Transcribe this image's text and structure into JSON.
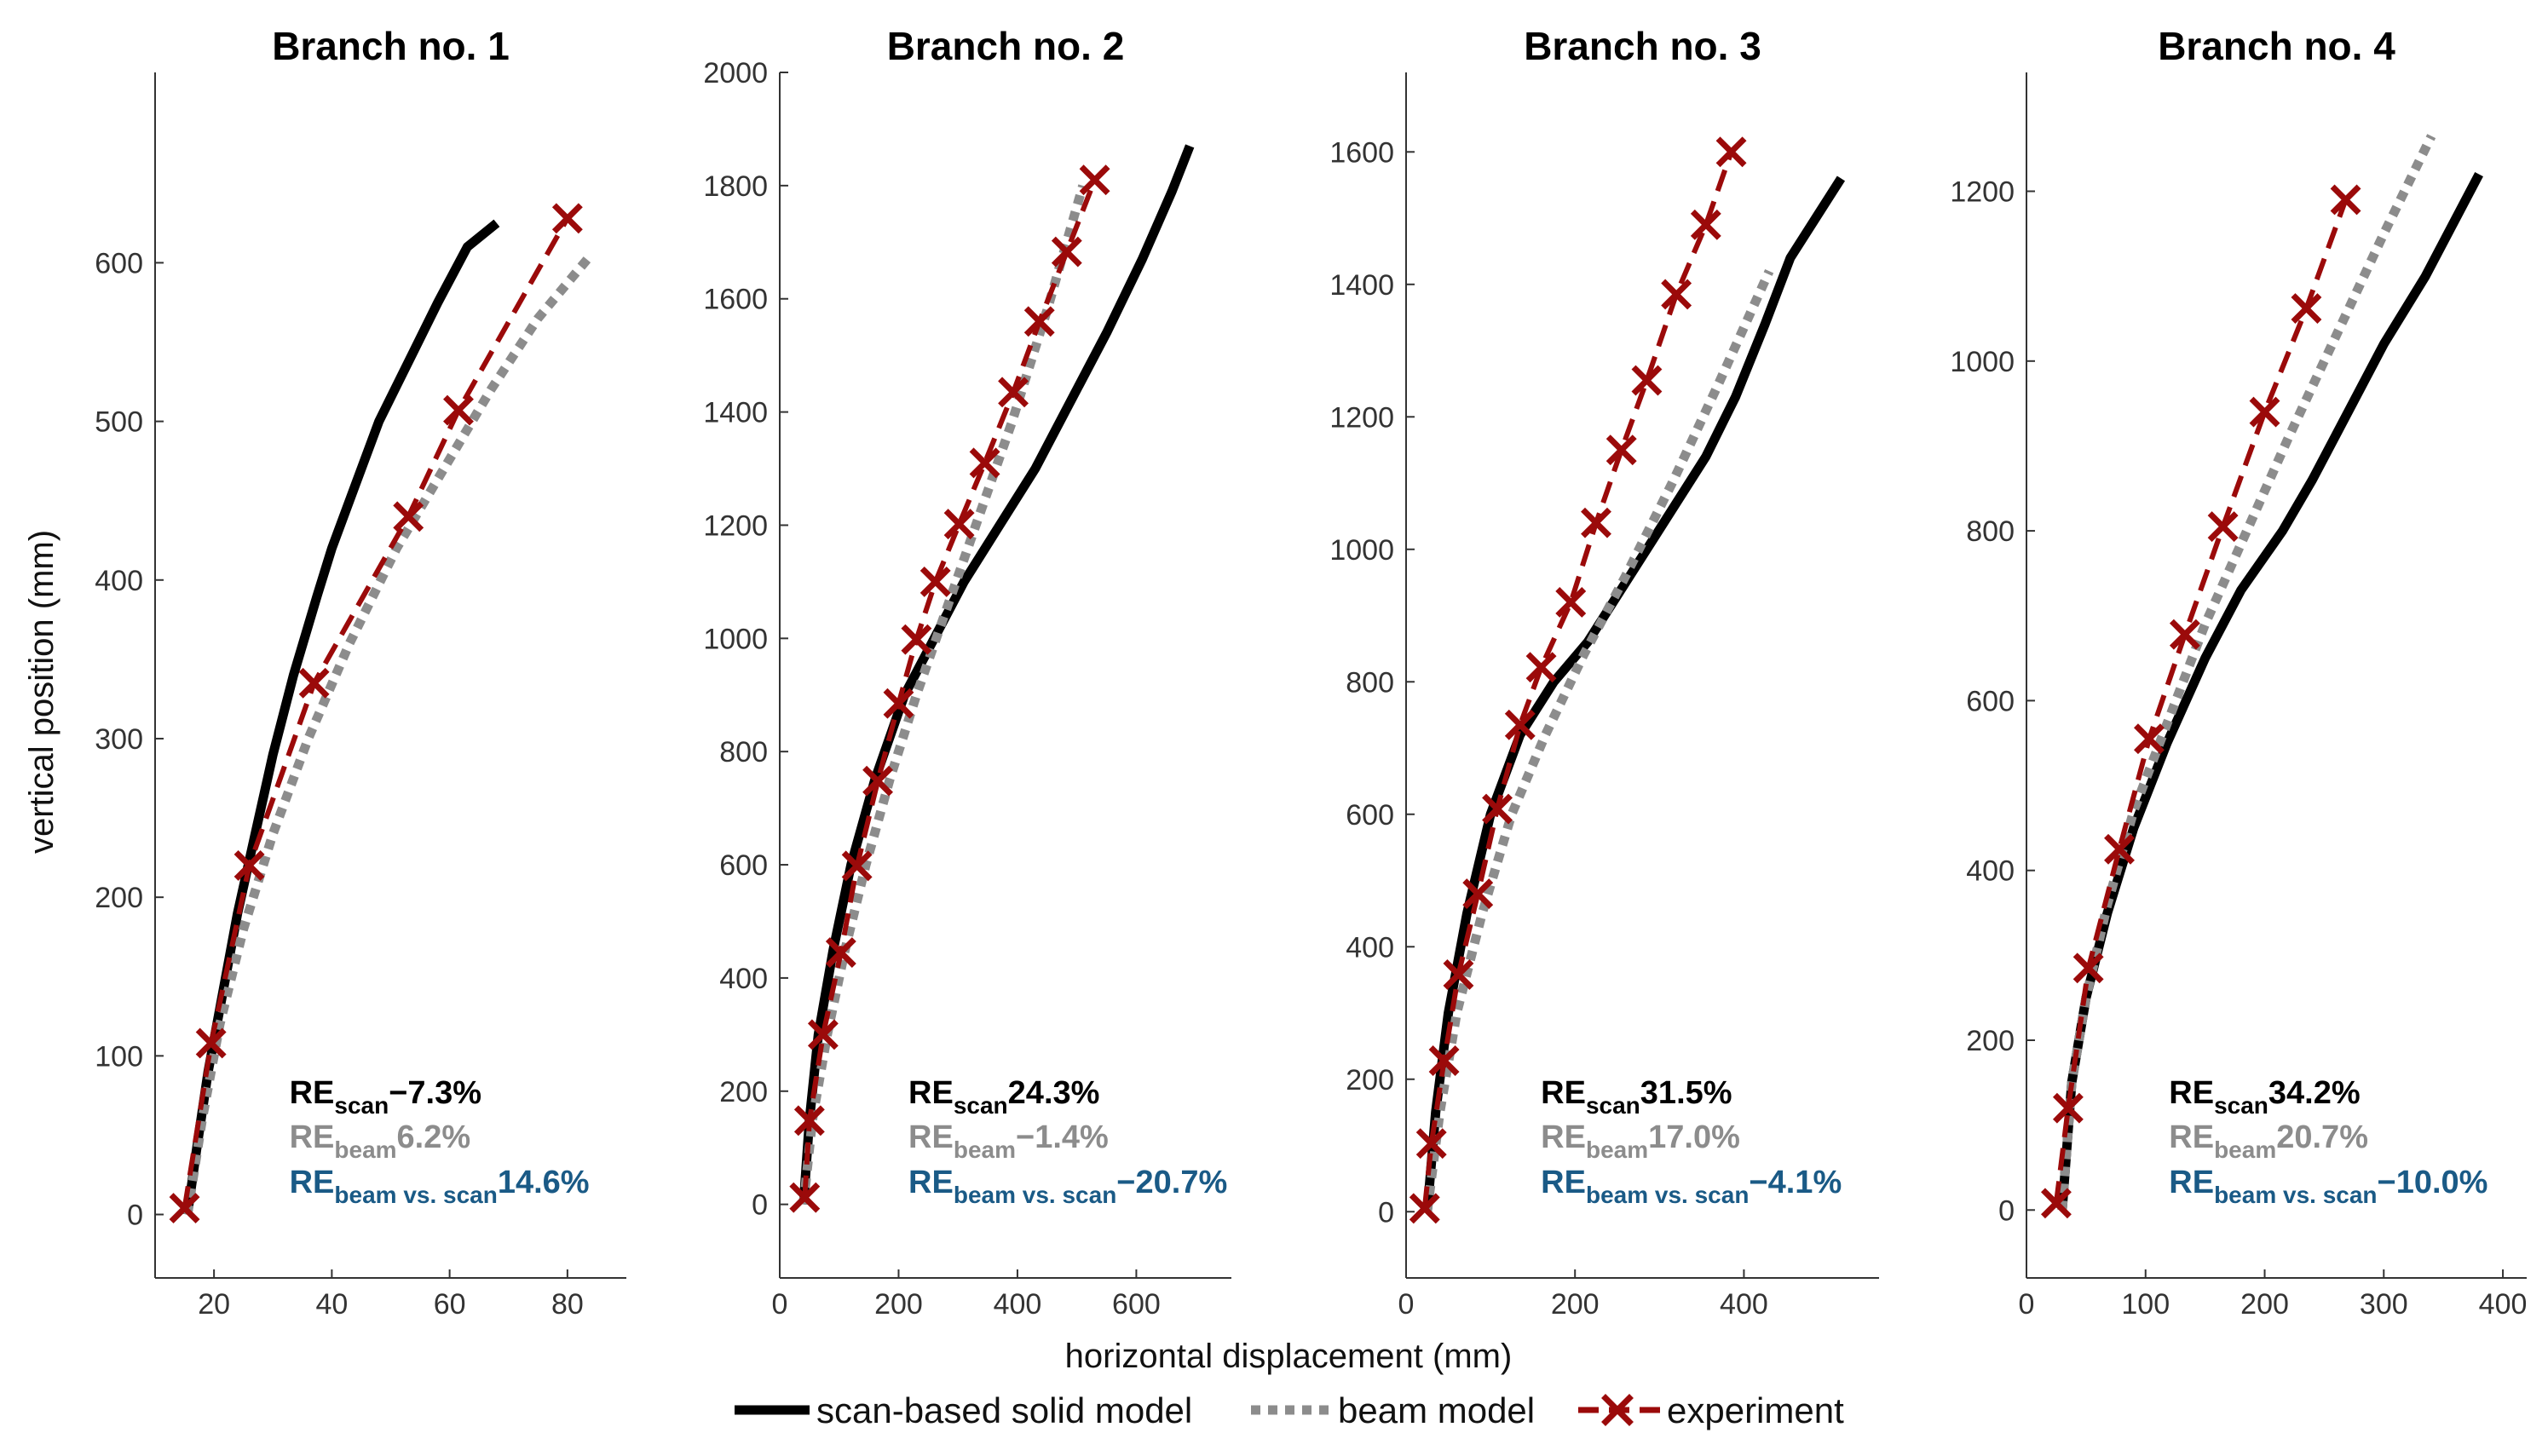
{
  "chart_data": [
    {
      "type": "line",
      "title": "Branch no. 1",
      "xlim": [
        10,
        90
      ],
      "ylim": [
        -40,
        720
      ],
      "xticks": [
        20,
        40,
        60,
        80
      ],
      "yticks": [
        0,
        100,
        200,
        300,
        400,
        500,
        600
      ],
      "series": [
        {
          "name": "scan-based solid model",
          "x": [
            15.5,
            17,
            19,
            21.5,
            24,
            27,
            30,
            33.5,
            37.5,
            40,
            44,
            48,
            52,
            54,
            58,
            63,
            68
          ],
          "y": [
            0,
            40,
            90,
            140,
            190,
            240,
            290,
            340,
            390,
            420,
            460,
            500,
            530,
            545,
            575,
            610,
            625
          ]
        },
        {
          "name": "beam model",
          "x": [
            15.5,
            18,
            21,
            25,
            30,
            36,
            43,
            51,
            59,
            67,
            75,
            84
          ],
          "y": [
            0,
            60,
            120,
            180,
            240,
            300,
            360,
            420,
            470,
            520,
            565,
            605
          ]
        },
        {
          "name": "experiment",
          "x": [
            15,
            19.5,
            26,
            37,
            53,
            61.5,
            80
          ],
          "y": [
            4,
            108,
            220,
            335,
            440,
            507,
            628
          ]
        }
      ],
      "annotations": {
        "re_scan": "−7.3%",
        "re_beam": "6.2%",
        "re_beam_vs_scan": "14.6%"
      }
    },
    {
      "type": "line",
      "title": "Branch no. 2",
      "xlim": [
        0,
        760
      ],
      "ylim": [
        -130,
        2000
      ],
      "xticks": [
        0,
        200,
        400,
        600
      ],
      "yticks": [
        0,
        200,
        400,
        600,
        800,
        1000,
        1200,
        1400,
        1600,
        1800,
        2000
      ],
      "series": [
        {
          "name": "scan-based solid model",
          "x": [
            40,
            50,
            65,
            90,
            120,
            160,
            210,
            260,
            310,
            370,
            430,
            490,
            550,
            610,
            660,
            690
          ],
          "y": [
            0,
            150,
            300,
            450,
            600,
            750,
            900,
            1000,
            1100,
            1200,
            1300,
            1420,
            1540,
            1670,
            1790,
            1870
          ]
        },
        {
          "name": "beam model",
          "x": [
            40,
            55,
            80,
            110,
            145,
            185,
            230,
            280,
            330,
            390,
            450,
            510
          ],
          "y": [
            0,
            150,
            300,
            450,
            600,
            750,
            900,
            1050,
            1200,
            1380,
            1580,
            1800
          ]
        },
        {
          "name": "experiment",
          "x": [
            42,
            50,
            73,
            103,
            130,
            165,
            200,
            230,
            262,
            302,
            345,
            393,
            437,
            483,
            530
          ],
          "y": [
            12,
            148,
            300,
            445,
            598,
            748,
            885,
            998,
            1100,
            1202,
            1310,
            1435,
            1560,
            1683,
            1810
          ]
        }
      ],
      "annotations": {
        "re_scan": "24.3%",
        "re_beam": "−1.4%",
        "re_beam_vs_scan": "−20.7%"
      }
    },
    {
      "type": "line",
      "title": "Branch no. 3",
      "xlim": [
        0,
        560
      ],
      "ylim": [
        -100,
        1720
      ],
      "xticks": [
        0,
        200,
        400
      ],
      "yticks": [
        0,
        200,
        400,
        600,
        800,
        1000,
        1200,
        1400,
        1600
      ],
      "series": [
        {
          "name": "scan-based solid model",
          "x": [
            25,
            35,
            50,
            72,
            100,
            135,
            175,
            215,
            255,
            295,
            325,
            355,
            390,
            425,
            455,
            480,
            515
          ],
          "y": [
            0,
            150,
            300,
            450,
            600,
            720,
            800,
            860,
            940,
            1020,
            1080,
            1140,
            1230,
            1340,
            1440,
            1490,
            1560
          ]
        },
        {
          "name": "beam model",
          "x": [
            25,
            40,
            60,
            90,
            125,
            165,
            210,
            260,
            315,
            370,
            430
          ],
          "y": [
            0,
            150,
            300,
            450,
            600,
            720,
            840,
            960,
            1100,
            1250,
            1420
          ]
        },
        {
          "name": "experiment",
          "x": [
            22,
            30,
            45,
            62,
            85,
            108,
            135,
            160,
            195,
            225,
            255,
            285,
            320,
            355,
            385
          ],
          "y": [
            5,
            103,
            228,
            358,
            480,
            608,
            735,
            822,
            920,
            1040,
            1150,
            1255,
            1385,
            1490,
            1600
          ]
        }
      ],
      "annotations": {
        "re_scan": "31.5%",
        "re_beam": "17.0%",
        "re_beam_vs_scan": "−4.1%"
      }
    },
    {
      "type": "line",
      "title": "Branch no. 4",
      "xlim": [
        0,
        420
      ],
      "ylim": [
        -80,
        1340
      ],
      "xticks": [
        0,
        100,
        200,
        300,
        400
      ],
      "yticks": [
        0,
        200,
        400,
        600,
        800,
        1000,
        1200
      ],
      "series": [
        {
          "name": "scan-based solid model",
          "x": [
            30,
            38,
            50,
            68,
            90,
            118,
            150,
            180,
            215,
            240,
            270,
            300,
            335,
            380
          ],
          "y": [
            0,
            150,
            250,
            350,
            450,
            550,
            650,
            730,
            800,
            860,
            940,
            1020,
            1100,
            1220
          ]
        },
        {
          "name": "beam model",
          "x": [
            30,
            38,
            50,
            68,
            90,
            120,
            150,
            185,
            220,
            260,
            300,
            340
          ],
          "y": [
            0,
            150,
            250,
            360,
            470,
            580,
            690,
            800,
            910,
            1030,
            1150,
            1265
          ]
        },
        {
          "name": "experiment",
          "x": [
            25,
            35,
            52,
            78,
            103,
            133,
            165,
            200,
            235,
            268
          ],
          "y": [
            8,
            120,
            285,
            425,
            555,
            678,
            805,
            940,
            1062,
            1190
          ]
        }
      ],
      "annotations": {
        "re_scan": "34.2%",
        "re_beam": "20.7%",
        "re_beam_vs_scan": "−10.0%"
      }
    }
  ],
  "labels": {
    "ylabel": "vertical position (mm)",
    "xlabel": "horizontal displacement (mm)",
    "re": "RE",
    "sub_scan": "scan",
    "sub_beam": "beam",
    "sub_beam_vs_scan": "beam vs. scan"
  },
  "legend": [
    {
      "name": "scan-based solid model"
    },
    {
      "name": "beam model"
    },
    {
      "name": "experiment"
    }
  ],
  "colors": {
    "scan": "#000000",
    "beam": "#8c8c8c",
    "experiment": "#9b0a0a",
    "re_vs": "#1a5a86",
    "axis": "#333333"
  }
}
